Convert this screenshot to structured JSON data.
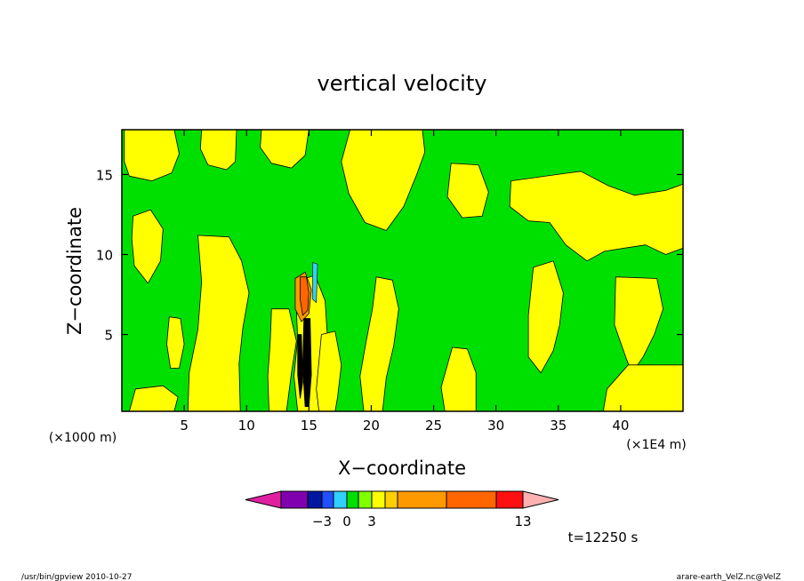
{
  "chart_data": {
    "type": "heatmap",
    "title": "vertical velocity",
    "xlabel": "X−coordinate",
    "ylabel": "Z−coordinate",
    "x_unit_left": "(×1000 m)",
    "x_unit_right": "(×1E4 m)",
    "xlim": [
      0,
      45
    ],
    "ylim": [
      0.2,
      17.8
    ],
    "x_ticks": [
      {
        "value": 5,
        "label": "5"
      },
      {
        "value": 10,
        "label": "10"
      },
      {
        "value": 15,
        "label": "15"
      },
      {
        "value": 20,
        "label": "20"
      },
      {
        "value": 25,
        "label": "25"
      },
      {
        "value": 30,
        "label": "30"
      },
      {
        "value": 35,
        "label": "35"
      },
      {
        "value": 40,
        "label": "40"
      }
    ],
    "y_ticks": [
      {
        "value": 5,
        "label": "5"
      },
      {
        "value": 10,
        "label": "10"
      },
      {
        "value": 15,
        "label": "15"
      }
    ],
    "grid": false,
    "colorbar": {
      "colors": [
        "#e020a0",
        "#8000b0",
        "#0018a0",
        "#2050ff",
        "#30d0ff",
        "#00e000",
        "#80ff00",
        "#ffff00",
        "#ffd000",
        "#ff9900",
        "#ff6600",
        "#ff1010",
        "#ff7070",
        "#ffb0b0"
      ],
      "labels": [
        {
          "boundary": 2,
          "text": "−3"
        },
        {
          "boundary": 4,
          "text": "0"
        },
        {
          "boundary": 6,
          "text": "3"
        },
        {
          "boundary": 11,
          "text": "13"
        }
      ]
    },
    "background_color": "#00e000",
    "positive_color": "#ffff00",
    "yellow_regions": [
      [
        [
          0.2,
          17.8
        ],
        [
          4.2,
          17.8
        ],
        [
          4.6,
          16.3
        ],
        [
          4.0,
          15.1
        ],
        [
          2.4,
          14.6
        ],
        [
          0.6,
          14.9
        ],
        [
          0.2,
          15.8
        ]
      ],
      [
        [
          6.4,
          17.8
        ],
        [
          9.2,
          17.8
        ],
        [
          9.1,
          15.8
        ],
        [
          8.4,
          15.3
        ],
        [
          6.9,
          15.6
        ],
        [
          6.3,
          16.6
        ]
      ],
      [
        [
          11.2,
          17.8
        ],
        [
          15.0,
          17.8
        ],
        [
          14.7,
          16.2
        ],
        [
          13.6,
          15.4
        ],
        [
          12.0,
          15.7
        ],
        [
          11.1,
          16.7
        ]
      ],
      [
        [
          18.3,
          17.8
        ],
        [
          24.1,
          17.8
        ],
        [
          24.3,
          16.4
        ],
        [
          23.6,
          14.9
        ],
        [
          22.6,
          13.0
        ],
        [
          21.2,
          11.5
        ],
        [
          19.5,
          12.0
        ],
        [
          18.2,
          13.8
        ],
        [
          17.6,
          15.8
        ]
      ],
      [
        [
          0.9,
          12.4
        ],
        [
          2.3,
          12.8
        ],
        [
          3.3,
          11.6
        ],
        [
          3.1,
          9.6
        ],
        [
          2.1,
          8.2
        ],
        [
          1.0,
          9.3
        ],
        [
          0.8,
          11.0
        ]
      ],
      [
        [
          6.1,
          11.2
        ],
        [
          8.6,
          11.1
        ],
        [
          9.6,
          9.6
        ],
        [
          10.2,
          7.6
        ],
        [
          9.7,
          5.4
        ],
        [
          9.4,
          3.2
        ],
        [
          9.5,
          0.2
        ],
        [
          5.3,
          0.2
        ],
        [
          5.4,
          2.6
        ],
        [
          6.1,
          5.3
        ],
        [
          6.4,
          8.3
        ]
      ],
      [
        [
          12.0,
          6.6
        ],
        [
          13.4,
          6.6
        ],
        [
          14.0,
          4.6
        ],
        [
          13.6,
          2.6
        ],
        [
          13.2,
          0.2
        ],
        [
          11.8,
          0.2
        ],
        [
          11.7,
          2.4
        ],
        [
          11.9,
          4.6
        ]
      ],
      [
        [
          14.3,
          8.4
        ],
        [
          15.5,
          8.7
        ],
        [
          16.3,
          7.1
        ],
        [
          16.5,
          4.6
        ],
        [
          16.4,
          2.2
        ],
        [
          16.7,
          0.2
        ],
        [
          14.1,
          0.2
        ],
        [
          13.8,
          2.4
        ],
        [
          14.1,
          4.7
        ],
        [
          14.0,
          6.6
        ]
      ],
      [
        [
          20.4,
          8.6
        ],
        [
          21.7,
          8.4
        ],
        [
          22.2,
          6.6
        ],
        [
          21.8,
          4.3
        ],
        [
          21.2,
          2.3
        ],
        [
          20.9,
          0.2
        ],
        [
          19.4,
          0.2
        ],
        [
          19.1,
          2.4
        ],
        [
          19.6,
          4.6
        ],
        [
          20.1,
          6.6
        ]
      ],
      [
        [
          16.0,
          5.0
        ],
        [
          17.1,
          5.2
        ],
        [
          17.6,
          3.1
        ],
        [
          17.3,
          1.1
        ],
        [
          17.1,
          0.2
        ],
        [
          15.8,
          0.2
        ],
        [
          15.6,
          1.6
        ]
      ],
      [
        [
          26.5,
          4.2
        ],
        [
          27.7,
          4.1
        ],
        [
          28.4,
          2.6
        ],
        [
          28.4,
          0.2
        ],
        [
          25.9,
          0.2
        ],
        [
          25.6,
          1.7
        ]
      ],
      [
        [
          26.4,
          15.7
        ],
        [
          28.6,
          15.6
        ],
        [
          29.4,
          13.9
        ],
        [
          28.9,
          12.4
        ],
        [
          27.3,
          12.3
        ],
        [
          26.1,
          13.6
        ]
      ],
      [
        [
          31.2,
          14.6
        ],
        [
          36.8,
          15.2
        ],
        [
          39.0,
          14.3
        ],
        [
          41.1,
          13.7
        ],
        [
          43.6,
          14.0
        ],
        [
          45.0,
          14.4
        ],
        [
          45.0,
          10.4
        ],
        [
          43.6,
          10.0
        ],
        [
          42.0,
          10.6
        ],
        [
          40.3,
          10.4
        ],
        [
          38.7,
          10.2
        ],
        [
          37.3,
          9.6
        ],
        [
          35.6,
          10.6
        ],
        [
          34.3,
          12.0
        ],
        [
          32.6,
          12.1
        ],
        [
          31.1,
          13.0
        ]
      ],
      [
        [
          33.0,
          9.2
        ],
        [
          34.6,
          9.6
        ],
        [
          35.4,
          7.6
        ],
        [
          35.1,
          5.6
        ],
        [
          34.6,
          4.0
        ],
        [
          33.6,
          2.6
        ],
        [
          32.6,
          3.6
        ],
        [
          32.6,
          6.2
        ]
      ],
      [
        [
          39.6,
          8.6
        ],
        [
          42.9,
          8.5
        ],
        [
          43.4,
          6.6
        ],
        [
          42.7,
          5.0
        ],
        [
          41.8,
          3.6
        ],
        [
          40.9,
          2.6
        ],
        [
          40.4,
          3.6
        ],
        [
          39.5,
          5.6
        ]
      ],
      [
        [
          40.6,
          3.1
        ],
        [
          45.0,
          3.1
        ],
        [
          45.0,
          0.2
        ],
        [
          38.6,
          0.2
        ],
        [
          38.9,
          1.6
        ]
      ],
      [
        [
          3.8,
          6.1
        ],
        [
          4.7,
          6.0
        ],
        [
          5.0,
          4.4
        ],
        [
          4.6,
          2.9
        ],
        [
          3.9,
          2.9
        ],
        [
          3.6,
          4.4
        ]
      ],
      [
        [
          1.1,
          1.6
        ],
        [
          3.3,
          1.8
        ],
        [
          4.5,
          1.1
        ],
        [
          4.2,
          0.2
        ],
        [
          0.6,
          0.2
        ]
      ]
    ],
    "hot_core": {
      "orange": [
        [
          13.9,
          8.5
        ],
        [
          14.7,
          8.9
        ],
        [
          15.2,
          7.8
        ],
        [
          15.0,
          6.3
        ],
        [
          14.4,
          5.8
        ],
        [
          13.9,
          6.6
        ]
      ],
      "red": [
        [
          14.3,
          8.6
        ],
        [
          14.8,
          8.6
        ],
        [
          15.0,
          7.6
        ],
        [
          14.9,
          6.5
        ],
        [
          14.5,
          6.2
        ],
        [
          14.3,
          7.2
        ]
      ],
      "black_streaks": [
        [
          [
            14.6,
            6.0
          ],
          [
            15.1,
            6.0
          ],
          [
            15.2,
            2.5
          ],
          [
            15.0,
            0.5
          ],
          [
            14.7,
            0.5
          ],
          [
            14.5,
            3.0
          ]
        ],
        [
          [
            14.1,
            5.0
          ],
          [
            14.4,
            5.0
          ],
          [
            14.5,
            2.0
          ],
          [
            14.3,
            1.0
          ],
          [
            14.1,
            2.5
          ]
        ]
      ]
    }
  },
  "colorbar_label_time": "t=12250 s",
  "footer_left": "/usr/bin/gpview   2010-10-27",
  "footer_right": "arare-earth_VelZ.nc@VelZ"
}
